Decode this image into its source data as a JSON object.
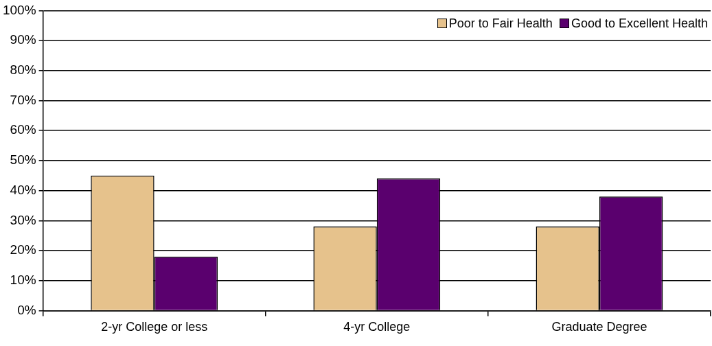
{
  "chart_data": {
    "type": "bar",
    "categories": [
      "2-yr College or less",
      "4-yr College",
      "Graduate Degree"
    ],
    "series": [
      {
        "name": "Poor to Fair Health",
        "color": "#e6c28c",
        "values": [
          45,
          28,
          28
        ]
      },
      {
        "name": "Good to Excellent Health",
        "color": "#5a006e",
        "values": [
          18,
          44,
          38
        ]
      }
    ],
    "ylim": [
      0,
      100
    ],
    "yticks": [
      {
        "value": 0,
        "label": "0%"
      },
      {
        "value": 10,
        "label": "10%"
      },
      {
        "value": 20,
        "label": "20%"
      },
      {
        "value": 30,
        "label": "30%"
      },
      {
        "value": 40,
        "label": "40%"
      },
      {
        "value": 50,
        "label": "50%"
      },
      {
        "value": 60,
        "label": "60%"
      },
      {
        "value": 70,
        "label": "70%"
      },
      {
        "value": 80,
        "label": "80%"
      },
      {
        "value": 90,
        "label": "90%"
      },
      {
        "value": 100,
        "label": "100%"
      }
    ],
    "grid": "y",
    "legend": "top right"
  }
}
